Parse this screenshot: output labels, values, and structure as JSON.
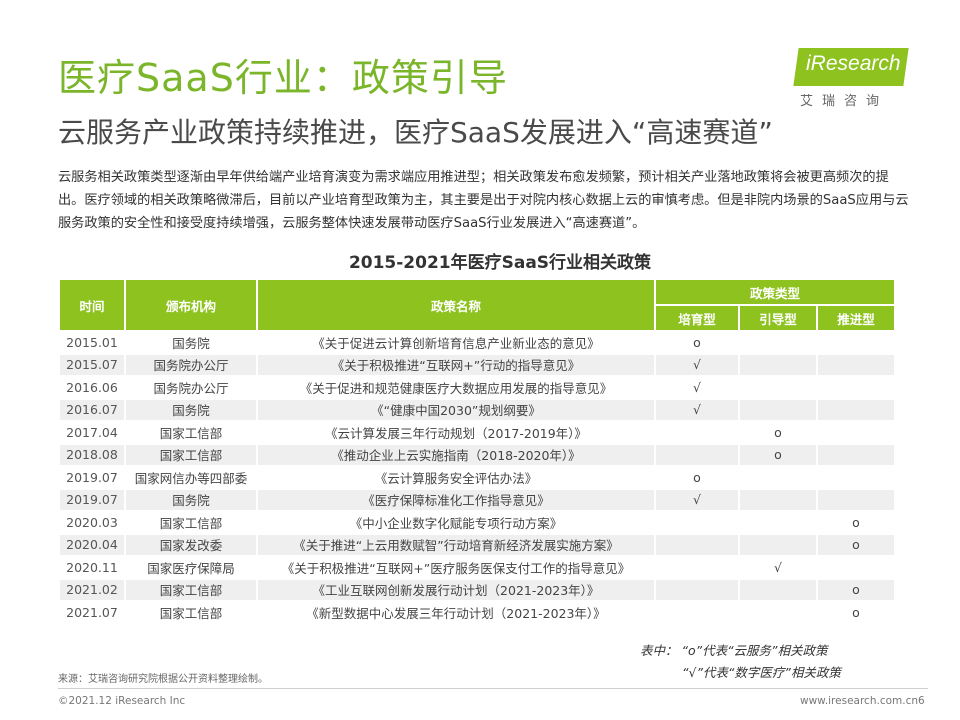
{
  "title": "医疗SaaS行业：政策引导",
  "subtitle": "云服务产业政策持续推进，医疗SaaS发展进入“高速赛道”",
  "logo": {
    "text": "iResearch",
    "cn": "艾瑞咨询"
  },
  "intro": "云服务相关政策类型逐渐由早年供给端产业培育演变为需求端应用推进型；相关政策发布愈发频繁，预计相关产业落地政策将会被更高频次的提出。医疗领域的相关政策略微滞后，目前以产业培育型政策为主，其主要是出于对院内核心数据上云的审慎考虑。但是非院内场景的SaaS应用与云服务政策的安全性和接受度持续增强，云服务整体快速发展带动医疗SaaS行业发展进入“高速赛道”。",
  "table": {
    "title": "2015-2021年医疗SaaS行业相关政策",
    "headers": {
      "time": "时间",
      "agency": "颁布机构",
      "name": "政策名称",
      "type": "政策类型",
      "cultivate": "培育型",
      "guide": "引导型",
      "promote": "推进型"
    },
    "rows": [
      {
        "time": "2015.01",
        "agency": "国务院",
        "name": "《关于促进云计算创新培育信息产业新业态的意见》",
        "cultivate": "o",
        "guide": "",
        "promote": ""
      },
      {
        "time": "2015.07",
        "agency": "国务院办公厅",
        "name": "《关于积极推进“互联网+”行动的指导意见》",
        "cultivate": "√",
        "guide": "",
        "promote": ""
      },
      {
        "time": "2016.06",
        "agency": "国务院办公厅",
        "name": "《关于促进和规范健康医疗大数据应用发展的指导意见》",
        "cultivate": "√",
        "guide": "",
        "promote": ""
      },
      {
        "time": "2016.07",
        "agency": "国务院",
        "name": "《“健康中国2030”规划纲要》",
        "cultivate": "√",
        "guide": "",
        "promote": ""
      },
      {
        "time": "2017.04",
        "agency": "国家工信部",
        "name": "《云计算发展三年行动规划（2017-2019年）》",
        "cultivate": "",
        "guide": "o",
        "promote": ""
      },
      {
        "time": "2018.08",
        "agency": "国家工信部",
        "name": "《推动企业上云实施指南（2018-2020年）》",
        "cultivate": "",
        "guide": "o",
        "promote": ""
      },
      {
        "time": "2019.07",
        "agency": "国家网信办等四部委",
        "name": "《云计算服务安全评估办法》",
        "cultivate": "o",
        "guide": "",
        "promote": ""
      },
      {
        "time": "2019.07",
        "agency": "国务院",
        "name": "《医疗保障标准化工作指导意见》",
        "cultivate": "√",
        "guide": "",
        "promote": ""
      },
      {
        "time": "2020.03",
        "agency": "国家工信部",
        "name": "《中小企业数字化赋能专项行动方案》",
        "cultivate": "",
        "guide": "",
        "promote": "o"
      },
      {
        "time": "2020.04",
        "agency": "国家发改委",
        "name": "《关于推进“上云用数赋智”行动培育新经济发展实施方案》",
        "cultivate": "",
        "guide": "",
        "promote": "o"
      },
      {
        "time": "2020.11",
        "agency": "国家医疗保障局",
        "name": "《关于积极推进“互联网+”医疗服务医保支付工作的指导意见》",
        "cultivate": "",
        "guide": "√",
        "promote": ""
      },
      {
        "time": "2021.02",
        "agency": "国家工信部",
        "name": "《工业互联网创新发展行动计划（2021-2023年）》",
        "cultivate": "",
        "guide": "",
        "promote": "o"
      },
      {
        "time": "2021.07",
        "agency": "国家工信部",
        "name": "《新型数据中心发展三年行动计划（2021-2023年）》",
        "cultivate": "",
        "guide": "",
        "promote": "o"
      }
    ]
  },
  "legend": {
    "line1": "表中：  “o”代表“云服务”相关政策",
    "line2": "“√”代表“数字医疗”相关政策"
  },
  "source": "来源：艾瑞咨询研究院根据公开资料整理绘制。",
  "footer": {
    "copyright": "©2021.12 iResearch Inc",
    "site": "www.iresearch.com.cn",
    "page": "6"
  },
  "colors": {
    "accent": "#8dc21f",
    "title_green": "#7ab52a",
    "row_alt": "#efefef"
  }
}
